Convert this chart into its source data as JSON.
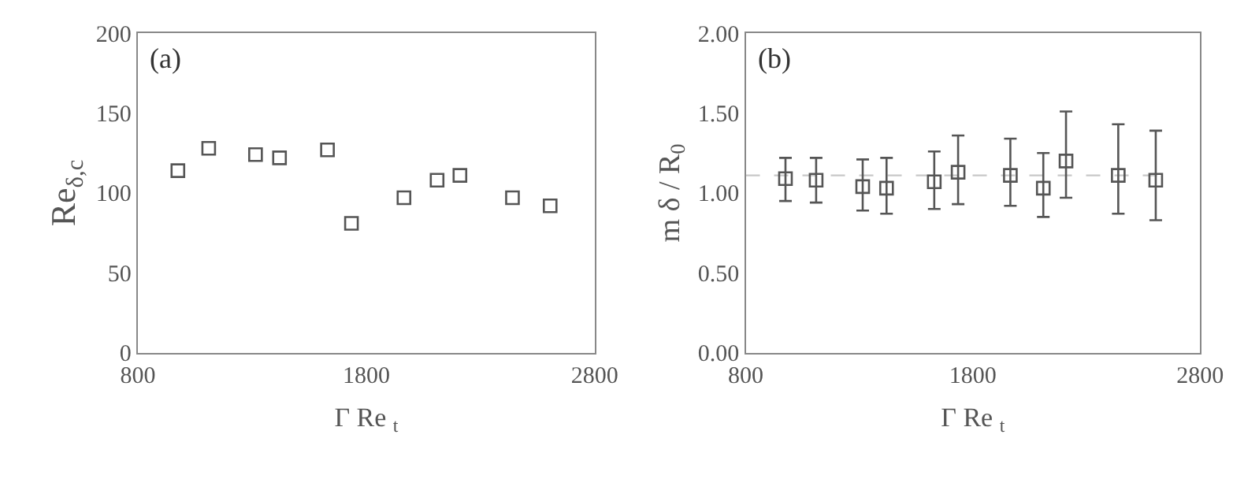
{
  "chart_data": [
    {
      "type": "scatter",
      "xlabel": "Γ Re $_{t}$",
      "ylabel": "Re$_{δ,c}$",
      "annotations": [
        "(a)"
      ],
      "x": [
        975,
        1110,
        1315,
        1420,
        1630,
        1735,
        1965,
        2110,
        2210,
        2440,
        2605
      ],
      "series": [
        {
          "color": "#555555",
          "values": [
            114,
            128,
            124,
            122,
            127,
            81,
            97,
            108,
            111,
            97,
            92
          ]
        }
      ],
      "xlim": [
        800,
        2800
      ],
      "xticks": [
        800,
        1800,
        2800
      ],
      "ylim": [
        0,
        200
      ],
      "yticks": [
        0,
        50,
        100,
        150,
        200
      ],
      "grid": false,
      "marker": "square"
    },
    {
      "type": "scatter",
      "xlabel": "Γ Re $_{t}$",
      "ylabel": "m δ / R$_{0}$",
      "annotations": [
        "(b)"
      ],
      "x": [
        975,
        1110,
        1315,
        1420,
        1630,
        1735,
        1965,
        2110,
        2210,
        2440,
        2605
      ],
      "series": [
        {
          "color": "#555555",
          "values": [
            1.09,
            1.08,
            1.04,
            1.03,
            1.07,
            1.13,
            1.11,
            1.03,
            1.2,
            1.11,
            1.08
          ],
          "errors": [
            [
              0.95,
              1.22
            ],
            [
              0.94,
              1.22
            ],
            [
              0.89,
              1.21
            ],
            [
              0.87,
              1.22
            ],
            [
              0.9,
              1.26
            ],
            [
              0.93,
              1.36
            ],
            [
              0.92,
              1.34
            ],
            [
              0.85,
              1.25
            ],
            [
              0.97,
              1.51
            ],
            [
              0.87,
              1.43
            ],
            [
              0.83,
              1.39
            ]
          ]
        }
      ],
      "ref_lines": [
        {
          "axis": "y",
          "value": 1.11,
          "color": "#c8c8c8",
          "line_style": "dashed"
        }
      ],
      "xlim": [
        800,
        2800
      ],
      "xticks": [
        800,
        1800,
        2800
      ],
      "ylim": [
        0,
        2
      ],
      "yticks": [
        {
          "value": 0,
          "label": "0.00"
        },
        {
          "value": 0.5,
          "label": "0.50"
        },
        {
          "value": 1,
          "label": "1.00"
        },
        {
          "value": 1.5,
          "label": "1.50"
        },
        {
          "value": 2,
          "label": "2.00"
        }
      ],
      "grid": false,
      "marker": "square"
    }
  ]
}
